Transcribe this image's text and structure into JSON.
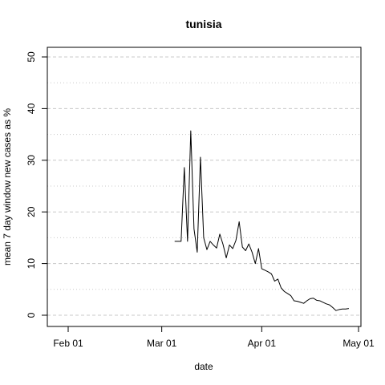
{
  "chart_data": {
    "type": "line",
    "title": "tunisia",
    "xlabel": "date",
    "ylabel": "mean  7  day window new cases as %",
    "x_axis": {
      "scale": "date",
      "range": [
        "2020-01-19",
        "2020-05-01"
      ],
      "ticks": [
        {
          "value": "2020-02-01",
          "label": "Feb 01"
        },
        {
          "value": "2020-03-01",
          "label": "Mar 01"
        },
        {
          "value": "2020-04-01",
          "label": "Apr 01"
        },
        {
          "value": "2020-05-01",
          "label": "May 01"
        }
      ]
    },
    "y_axis": {
      "range": [
        -2,
        52
      ],
      "ticks": [
        0,
        10,
        20,
        30,
        40,
        50
      ]
    },
    "grid": {
      "horizontal": true,
      "major_lines": [
        0,
        10,
        20,
        30,
        40,
        50
      ],
      "minor_lines": [
        5,
        15,
        25,
        35,
        45
      ],
      "vertical": false
    },
    "line_color": "#000000",
    "grid_color": "#c8c8c8",
    "series": [
      {
        "x": [
          "2020-03-05",
          "2020-03-06",
          "2020-03-07",
          "2020-03-08",
          "2020-03-09",
          "2020-03-10",
          "2020-03-11",
          "2020-03-12",
          "2020-03-13",
          "2020-03-14",
          "2020-03-15",
          "2020-03-16",
          "2020-03-17",
          "2020-03-18",
          "2020-03-19",
          "2020-03-20",
          "2020-03-21",
          "2020-03-22",
          "2020-03-23",
          "2020-03-24",
          "2020-03-25",
          "2020-03-26",
          "2020-03-27",
          "2020-03-28",
          "2020-03-29",
          "2020-03-30",
          "2020-03-31",
          "2020-04-01",
          "2020-04-02",
          "2020-04-03",
          "2020-04-04",
          "2020-04-05",
          "2020-04-06",
          "2020-04-07",
          "2020-04-08",
          "2020-04-09",
          "2020-04-10",
          "2020-04-11",
          "2020-04-12",
          "2020-04-13",
          "2020-04-14",
          "2020-04-15",
          "2020-04-16",
          "2020-04-17",
          "2020-04-18",
          "2020-04-19",
          "2020-04-20",
          "2020-04-21",
          "2020-04-22",
          "2020-04-23",
          "2020-04-24",
          "2020-04-25",
          "2020-04-26",
          "2020-04-27",
          "2020-04-28"
        ],
        "y": [
          14.3,
          14.3,
          14.3,
          28.6,
          14.3,
          35.7,
          16.7,
          12.2,
          30.6,
          15.0,
          12.7,
          14.3,
          13.6,
          13.0,
          15.7,
          13.7,
          11.1,
          13.6,
          12.9,
          14.5,
          18.1,
          13.2,
          12.5,
          13.8,
          12.2,
          10.0,
          12.9,
          9.0,
          8.7,
          8.4,
          8.0,
          6.6,
          7.0,
          5.3,
          4.6,
          4.2,
          3.8,
          2.8,
          2.7,
          2.5,
          2.3,
          2.8,
          3.2,
          3.3,
          2.9,
          2.8,
          2.5,
          2.2,
          2.0,
          1.5,
          0.9,
          1.1,
          1.2,
          1.2,
          1.3
        ]
      }
    ]
  }
}
